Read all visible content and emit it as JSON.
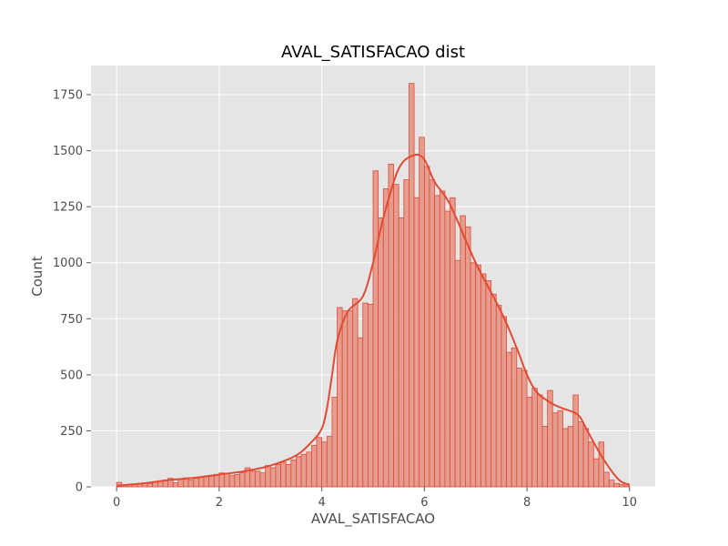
{
  "chart_data": {
    "type": "histogram",
    "title": "AVAL_SATISFACAO dist",
    "xlabel": "AVAL_SATISFACAO",
    "ylabel": "Count",
    "xlim": [
      -0.5,
      10.5
    ],
    "ylim": [
      0,
      1880
    ],
    "x_ticks": [
      0,
      2,
      4,
      6,
      8,
      10
    ],
    "y_ticks": [
      0,
      250,
      500,
      750,
      1000,
      1250,
      1500,
      1750
    ],
    "grid": true,
    "bin_start": 0,
    "bin_width": 0.1,
    "counts": [
      20,
      8,
      10,
      10,
      12,
      15,
      15,
      22,
      25,
      30,
      38,
      18,
      35,
      40,
      30,
      38,
      45,
      48,
      50,
      55,
      62,
      60,
      50,
      55,
      62,
      85,
      70,
      70,
      62,
      95,
      85,
      100,
      110,
      100,
      120,
      135,
      145,
      155,
      185,
      220,
      200,
      225,
      400,
      800,
      785,
      785,
      840,
      665,
      820,
      815,
      1410,
      1200,
      1330,
      1440,
      1350,
      1200,
      1370,
      1800,
      1290,
      1560,
      1430,
      1370,
      1300,
      1320,
      1230,
      1290,
      1010,
      1210,
      1160,
      1000,
      990,
      950,
      920,
      860,
      810,
      760,
      600,
      620,
      530,
      520,
      400,
      440,
      410,
      270,
      430,
      330,
      340,
      260,
      270,
      410,
      290,
      260,
      200,
      125,
      200,
      65,
      30,
      15,
      10,
      5
    ],
    "kde": {
      "x": [
        0,
        0.5,
        1.0,
        1.5,
        2.0,
        2.5,
        3.0,
        3.5,
        3.8,
        4.0,
        4.1,
        4.2,
        4.3,
        4.5,
        4.8,
        5.0,
        5.2,
        5.5,
        5.8,
        6.0,
        6.2,
        6.5,
        7.0,
        7.5,
        7.8,
        8.0,
        8.2,
        8.5,
        8.7,
        9.0,
        9.2,
        9.5,
        9.8,
        10.0
      ],
      "y": [
        5,
        15,
        30,
        40,
        55,
        70,
        95,
        140,
        200,
        260,
        350,
        500,
        650,
        780,
        850,
        1000,
        1200,
        1420,
        1480,
        1460,
        1360,
        1260,
        1000,
        780,
        620,
        500,
        420,
        370,
        350,
        320,
        240,
        120,
        30,
        10
      ]
    },
    "colors": {
      "bar_fill": "#e5998a",
      "bar_edge": "#e24a33",
      "kde_line": "#e24a33",
      "background": "#e5e5e5",
      "grid": "#ffffff"
    }
  }
}
